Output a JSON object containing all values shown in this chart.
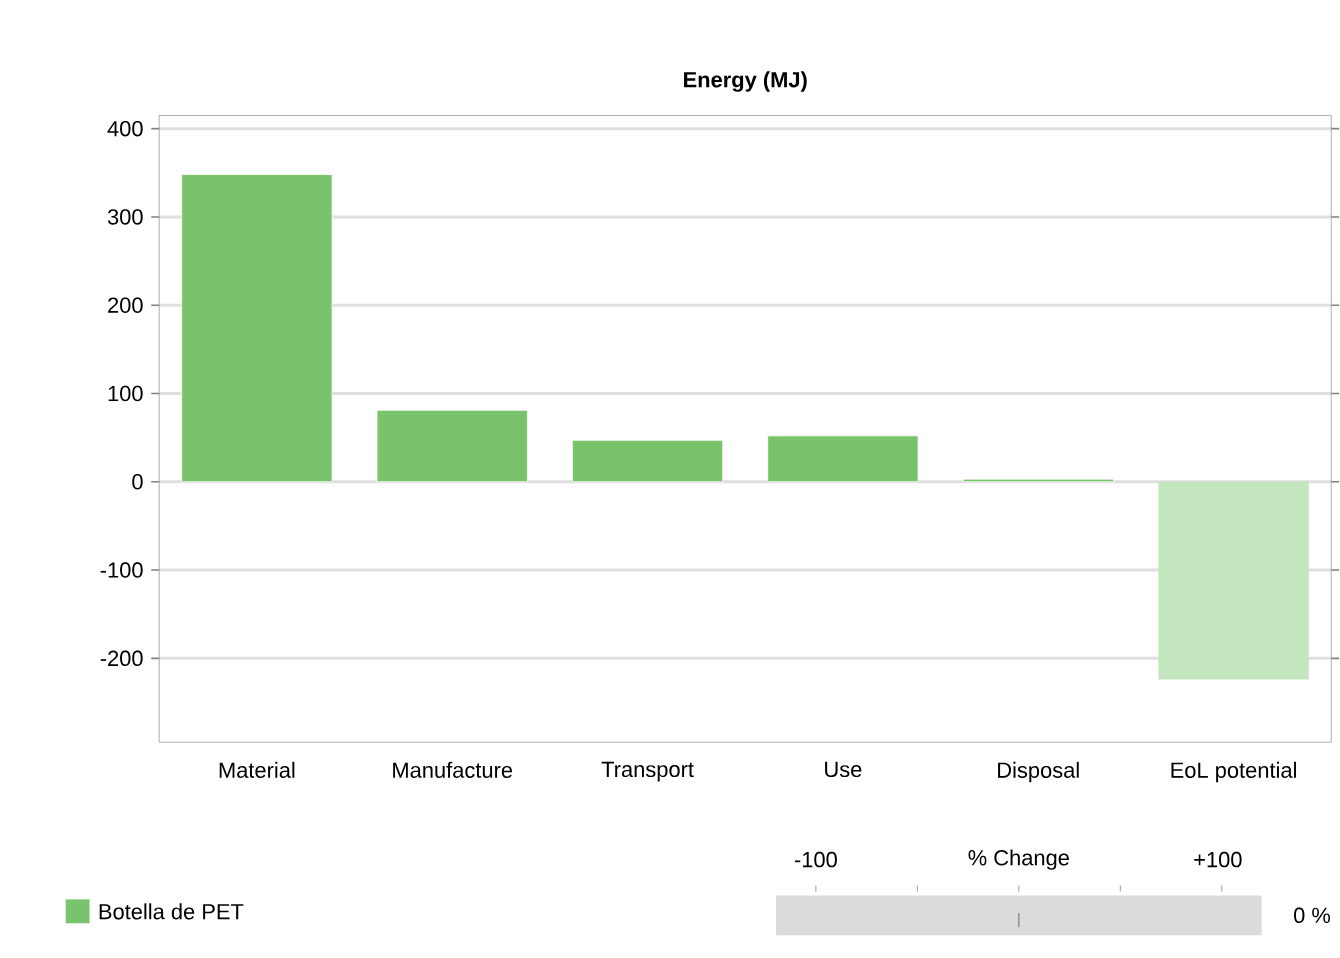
{
  "chart_data": {
    "type": "bar",
    "title": "Energy (MJ)",
    "categories": [
      "Material",
      "Manufacture",
      "Transport",
      "Use",
      "Disposal",
      "EoL potential"
    ],
    "series": [
      {
        "name": "Botella de PET",
        "color": "#79c36c",
        "colors": [
          "#79c36c",
          "#79c36c",
          "#79c36c",
          "#79c36c",
          "#79c36c",
          "#c4e6be"
        ],
        "values": [
          348,
          81,
          47,
          52,
          3,
          -224
        ]
      }
    ],
    "ylim": [
      -295,
      415
    ],
    "yticks": [
      -200,
      -100,
      0,
      100,
      200,
      300,
      400
    ],
    "grid": "y",
    "legend": "bottom left",
    "annotations": [
      "-100",
      "% Change",
      "+100",
      "0 %"
    ]
  }
}
